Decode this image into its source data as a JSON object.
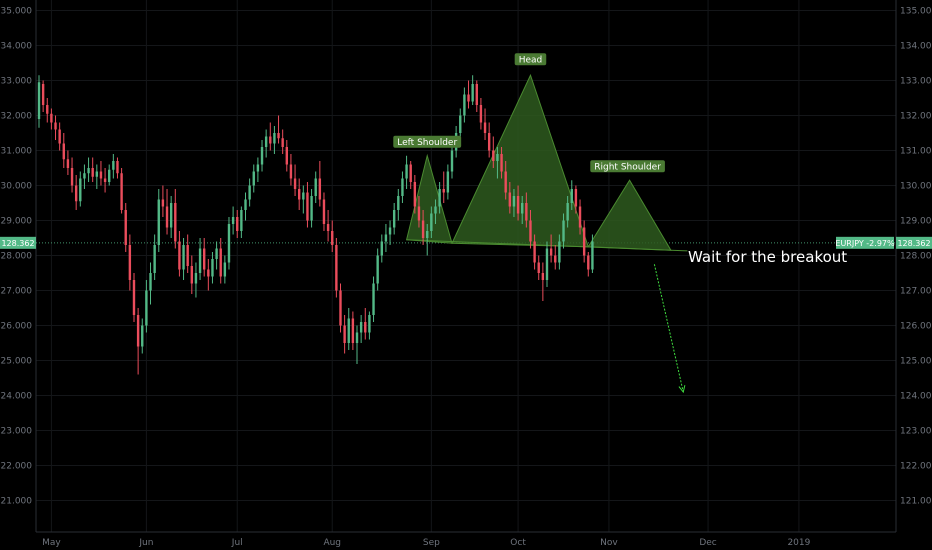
{
  "chart_data": {
    "type": "candlestick",
    "symbol_tag": "EURJPY -2.97%",
    "last_price": 128.362,
    "last_price_label": "128.362",
    "y_ticks": [
      "121.000",
      "122.000",
      "123.000",
      "124.000",
      "125.000",
      "126.000",
      "127.000",
      "128.000",
      "129.000",
      "130.000",
      "131.000",
      "132.000",
      "133.000",
      "134.000",
      "135.000"
    ],
    "y_tick_values": [
      121,
      122,
      123,
      124,
      125,
      126,
      127,
      128,
      129,
      130,
      131,
      132,
      133,
      134,
      135
    ],
    "ylim": [
      120.1,
      135.3
    ],
    "x_ticks": [
      "May",
      "Jun",
      "Jul",
      "Aug",
      "Sep",
      "Oct",
      "Nov",
      "Dec",
      "2019"
    ],
    "x_tick_index": [
      3,
      26,
      48,
      71,
      95,
      116,
      138,
      162,
      184
    ],
    "bars_total": 210,
    "grid": true,
    "colors": {
      "background": "#000000",
      "up": "#53b987",
      "down": "#eb4d5c",
      "pattern_fill": "#2e5a1f",
      "pattern_stroke": "#4a8a30",
      "label_bg": "#4a7a33",
      "price_line": "#53b987",
      "arrow": "#3fdc3f"
    },
    "pattern": {
      "type": "head-and-shoulders",
      "neckline": [
        {
          "i": 89,
          "p": 128.45
        },
        {
          "i": 153,
          "p": 128.15
        }
      ],
      "left_shoulder": {
        "label": "Left Shoulder",
        "peak": {
          "i": 94,
          "p": 130.85
        },
        "base": [
          {
            "i": 89,
            "p": 128.45
          },
          {
            "i": 100,
            "p": 128.35
          }
        ]
      },
      "head": {
        "label": "Head",
        "peak": {
          "i": 119,
          "p": 133.15
        },
        "base": [
          {
            "i": 100,
            "p": 128.35
          },
          {
            "i": 133,
            "p": 128.25
          }
        ]
      },
      "right_shoulder": {
        "label": "Right Shoulder",
        "peak": {
          "i": 143,
          "p": 130.15
        },
        "base": [
          {
            "i": 133,
            "p": 128.25
          },
          {
            "i": 153,
            "p": 128.15
          }
        ]
      }
    },
    "annotation": {
      "text": "Wait for the breakout"
    },
    "arrow": {
      "from": {
        "i": 149,
        "p": 127.75
      },
      "to": {
        "i": 156,
        "p": 124.1
      }
    },
    "ohlc": [
      [
        131.9,
        133.15,
        131.65,
        132.95
      ],
      [
        132.9,
        133.0,
        132.1,
        132.3
      ],
      [
        132.3,
        132.5,
        131.8,
        132.05
      ],
      [
        132.05,
        132.2,
        131.6,
        131.8
      ],
      [
        131.8,
        132.0,
        131.3,
        131.6
      ],
      [
        131.6,
        131.8,
        131.0,
        131.2
      ],
      [
        131.2,
        131.5,
        130.5,
        130.75
      ],
      [
        130.75,
        131.0,
        130.3,
        130.5
      ],
      [
        130.5,
        130.8,
        129.8,
        130.0
      ],
      [
        130.0,
        130.3,
        129.3,
        129.55
      ],
      [
        129.55,
        130.4,
        129.4,
        130.2
      ],
      [
        130.2,
        130.6,
        129.9,
        130.35
      ],
      [
        130.35,
        130.8,
        130.1,
        130.5
      ],
      [
        130.5,
        130.8,
        130.1,
        130.25
      ],
      [
        130.25,
        130.6,
        129.9,
        130.4
      ],
      [
        130.4,
        130.7,
        130.0,
        130.2
      ],
      [
        130.2,
        130.5,
        129.8,
        130.1
      ],
      [
        130.1,
        130.6,
        130.0,
        130.45
      ],
      [
        130.45,
        130.9,
        130.2,
        130.7
      ],
      [
        130.7,
        130.8,
        130.2,
        130.35
      ],
      [
        130.35,
        130.5,
        129.2,
        129.3
      ],
      [
        129.3,
        129.5,
        128.1,
        128.3
      ],
      [
        128.3,
        128.6,
        127.0,
        127.3
      ],
      [
        127.3,
        127.5,
        126.1,
        126.3
      ],
      [
        126.3,
        126.5,
        124.6,
        125.4
      ],
      [
        125.4,
        126.2,
        125.2,
        126.0
      ],
      [
        126.0,
        127.3,
        125.8,
        127.0
      ],
      [
        127.0,
        127.8,
        126.6,
        127.5
      ],
      [
        127.5,
        128.6,
        127.3,
        128.3
      ],
      [
        128.3,
        129.9,
        128.1,
        129.6
      ],
      [
        129.6,
        130.0,
        129.1,
        129.4
      ],
      [
        129.4,
        129.9,
        128.6,
        128.8
      ],
      [
        128.8,
        129.7,
        128.5,
        129.5
      ],
      [
        129.5,
        129.9,
        128.2,
        128.4
      ],
      [
        128.4,
        128.7,
        127.4,
        127.6
      ],
      [
        127.6,
        128.5,
        127.3,
        128.3
      ],
      [
        128.3,
        128.6,
        127.5,
        127.7
      ],
      [
        127.7,
        128.0,
        126.9,
        127.2
      ],
      [
        127.2,
        127.8,
        126.8,
        127.5
      ],
      [
        127.5,
        128.5,
        127.3,
        128.2
      ],
      [
        128.2,
        128.5,
        127.4,
        127.6
      ],
      [
        127.6,
        127.9,
        127.0,
        127.4
      ],
      [
        127.4,
        128.1,
        127.2,
        127.9
      ],
      [
        127.9,
        128.4,
        127.6,
        128.2
      ],
      [
        128.2,
        128.5,
        127.2,
        127.4
      ],
      [
        127.4,
        128.0,
        127.2,
        127.8
      ],
      [
        127.8,
        129.1,
        127.6,
        128.9
      ],
      [
        128.9,
        129.4,
        128.6,
        129.1
      ],
      [
        129.1,
        129.3,
        128.5,
        128.7
      ],
      [
        128.7,
        129.4,
        128.5,
        129.3
      ],
      [
        129.3,
        129.8,
        129.0,
        129.6
      ],
      [
        129.6,
        130.2,
        129.4,
        130.0
      ],
      [
        130.0,
        130.6,
        129.8,
        130.4
      ],
      [
        130.4,
        130.8,
        130.1,
        130.6
      ],
      [
        130.6,
        131.3,
        130.4,
        131.1
      ],
      [
        131.1,
        131.6,
        130.8,
        131.4
      ],
      [
        131.4,
        131.8,
        131.0,
        131.2
      ],
      [
        131.2,
        131.7,
        130.9,
        131.5
      ],
      [
        131.5,
        132.0,
        131.2,
        131.35
      ],
      [
        131.35,
        131.6,
        130.9,
        131.1
      ],
      [
        131.1,
        131.3,
        130.4,
        130.6
      ],
      [
        130.6,
        130.9,
        130.0,
        130.2
      ],
      [
        130.2,
        130.6,
        129.7,
        129.9
      ],
      [
        129.9,
        130.2,
        129.3,
        129.6
      ],
      [
        129.6,
        130.0,
        129.2,
        129.8
      ],
      [
        129.8,
        130.1,
        128.8,
        129.0
      ],
      [
        129.0,
        129.9,
        128.8,
        129.7
      ],
      [
        129.7,
        130.4,
        129.5,
        130.2
      ],
      [
        130.2,
        130.7,
        129.4,
        129.6
      ],
      [
        129.6,
        129.8,
        128.7,
        128.9
      ],
      [
        128.9,
        129.3,
        128.4,
        128.7
      ],
      [
        128.7,
        129.0,
        128.1,
        128.3
      ],
      [
        128.3,
        128.5,
        126.8,
        127.0
      ],
      [
        127.0,
        127.2,
        125.8,
        126.0
      ],
      [
        126.0,
        126.3,
        125.2,
        125.5
      ],
      [
        125.5,
        126.5,
        125.3,
        126.2
      ],
      [
        126.2,
        126.4,
        125.3,
        125.5
      ],
      [
        125.5,
        126.0,
        124.9,
        125.8
      ],
      [
        125.8,
        126.3,
        125.5,
        126.1
      ],
      [
        126.1,
        126.5,
        125.6,
        125.8
      ],
      [
        125.8,
        126.4,
        125.6,
        126.3
      ],
      [
        126.3,
        127.4,
        126.1,
        127.2
      ],
      [
        127.2,
        128.2,
        127.0,
        128.0
      ],
      [
        128.0,
        128.6,
        127.8,
        128.4
      ],
      [
        128.4,
        128.9,
        128.1,
        128.6
      ],
      [
        128.6,
        129.0,
        128.3,
        128.8
      ],
      [
        128.8,
        129.5,
        128.6,
        129.3
      ],
      [
        129.3,
        129.9,
        129.0,
        129.7
      ],
      [
        129.7,
        130.4,
        129.5,
        130.2
      ],
      [
        130.2,
        130.85,
        129.9,
        130.6
      ],
      [
        130.6,
        130.7,
        129.9,
        130.1
      ],
      [
        130.1,
        130.3,
        129.2,
        129.4
      ],
      [
        129.4,
        129.7,
        128.8,
        129.0
      ],
      [
        129.0,
        129.3,
        128.3,
        128.5
      ],
      [
        128.5,
        128.9,
        128.0,
        128.7
      ],
      [
        128.7,
        129.4,
        128.5,
        129.2
      ],
      [
        129.2,
        129.6,
        128.9,
        129.4
      ],
      [
        129.4,
        130.1,
        129.2,
        129.9
      ],
      [
        129.9,
        130.4,
        129.5,
        129.8
      ],
      [
        129.8,
        130.6,
        129.6,
        130.4
      ],
      [
        130.4,
        131.2,
        130.2,
        131.0
      ],
      [
        131.0,
        131.7,
        130.8,
        131.5
      ],
      [
        131.5,
        132.2,
        131.3,
        132.0
      ],
      [
        132.0,
        132.8,
        131.8,
        132.6
      ],
      [
        132.6,
        133.0,
        132.2,
        132.4
      ],
      [
        132.4,
        133.15,
        132.3,
        132.9
      ],
      [
        132.9,
        133.0,
        132.1,
        132.3
      ],
      [
        132.3,
        132.5,
        131.6,
        131.8
      ],
      [
        131.8,
        132.2,
        131.3,
        131.5
      ],
      [
        131.5,
        131.8,
        130.8,
        131.0
      ],
      [
        131.0,
        131.4,
        130.5,
        130.7
      ],
      [
        130.7,
        131.1,
        130.2,
        130.9
      ],
      [
        130.9,
        131.1,
        130.2,
        130.4
      ],
      [
        130.4,
        130.7,
        129.6,
        129.8
      ],
      [
        129.8,
        130.1,
        129.2,
        129.4
      ],
      [
        129.4,
        129.9,
        129.1,
        129.7
      ],
      [
        129.7,
        130.0,
        129.0,
        129.2
      ],
      [
        129.2,
        129.7,
        128.9,
        129.5
      ],
      [
        129.5,
        129.8,
        128.8,
        129.0
      ],
      [
        129.0,
        129.3,
        128.2,
        128.4
      ],
      [
        128.4,
        128.6,
        127.6,
        127.8
      ],
      [
        127.8,
        128.0,
        127.3,
        127.5
      ],
      [
        127.5,
        127.8,
        126.7,
        127.3
      ],
      [
        127.3,
        128.4,
        127.1,
        128.2
      ],
      [
        128.2,
        128.6,
        127.8,
        128.0
      ],
      [
        128.0,
        128.3,
        127.6,
        127.8
      ],
      [
        127.8,
        128.6,
        127.6,
        128.4
      ],
      [
        128.4,
        129.2,
        128.2,
        129.0
      ],
      [
        129.0,
        129.7,
        128.8,
        129.5
      ],
      [
        129.5,
        130.15,
        129.3,
        129.9
      ],
      [
        129.9,
        130.0,
        129.2,
        129.4
      ],
      [
        129.4,
        129.6,
        128.6,
        128.8
      ],
      [
        128.8,
        129.0,
        127.8,
        128.0
      ],
      [
        128.0,
        128.1,
        127.4,
        127.6
      ],
      [
        127.6,
        128.6,
        127.5,
        128.4
      ]
    ]
  }
}
